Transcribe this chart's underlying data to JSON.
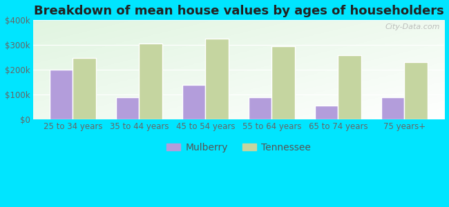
{
  "title": "Breakdown of mean house values by ages of householders",
  "categories": [
    "25 to 34 years",
    "35 to 44 years",
    "45 to 54 years",
    "55 to 64 years",
    "65 to 74 years",
    "75 years+"
  ],
  "mulberry_values": [
    200000,
    90000,
    140000,
    90000,
    55000,
    90000
  ],
  "tennessee_values": [
    248000,
    305000,
    325000,
    295000,
    260000,
    230000
  ],
  "mulberry_color": "#b39ddb",
  "tennessee_color": "#c5d5a0",
  "background_color": "#00e5ff",
  "plot_bg_color": "#e8f5e9",
  "ylim": [
    0,
    400000
  ],
  "yticks": [
    0,
    100000,
    200000,
    300000,
    400000
  ],
  "ytick_labels": [
    "$0",
    "$100k",
    "$200k",
    "$300k",
    "$400k"
  ],
  "legend_labels": [
    "Mulberry",
    "Tennessee"
  ],
  "title_fontsize": 13,
  "tick_fontsize": 8.5,
  "legend_fontsize": 10,
  "bar_width": 0.35,
  "watermark": "City-Data.com",
  "bar_edgecolor": "white",
  "bar_linewidth": 1.0
}
